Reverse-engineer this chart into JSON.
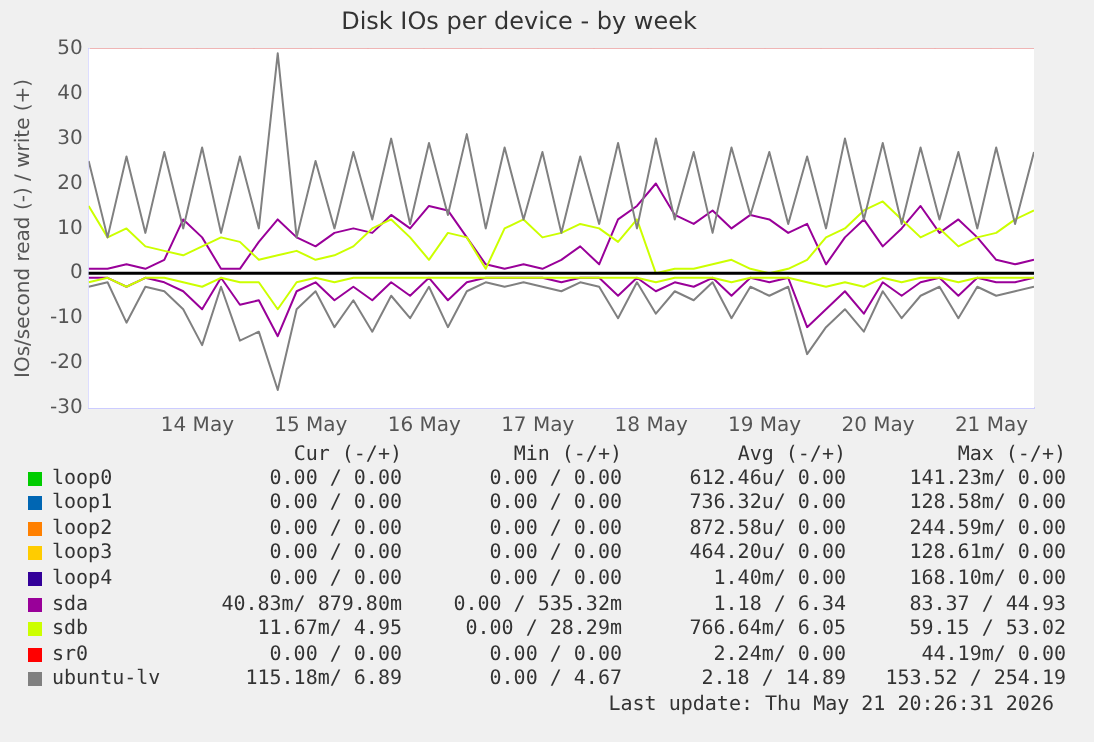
{
  "chart_data": {
    "type": "line",
    "title": "Disk IOs per device - by week",
    "ylabel": "IOs/second read (-) / write (+)",
    "x": [
      "2026-05-13T13:00",
      "2026-05-13T17:00",
      "2026-05-13T21:00",
      "2026-05-14T01:00",
      "2026-05-14T05:00",
      "2026-05-14T09:00",
      "2026-05-14T13:00",
      "2026-05-14T17:00",
      "2026-05-14T21:00",
      "2026-05-15T01:00",
      "2026-05-15T05:00",
      "2026-05-15T09:00",
      "2026-05-15T13:00",
      "2026-05-15T17:00",
      "2026-05-15T21:00",
      "2026-05-16T01:00",
      "2026-05-16T05:00",
      "2026-05-16T09:00",
      "2026-05-16T13:00",
      "2026-05-16T17:00",
      "2026-05-16T21:00",
      "2026-05-17T01:00",
      "2026-05-17T05:00",
      "2026-05-17T09:00",
      "2026-05-17T13:00",
      "2026-05-17T17:00",
      "2026-05-17T21:00",
      "2026-05-18T01:00",
      "2026-05-18T05:00",
      "2026-05-18T09:00",
      "2026-05-18T13:00",
      "2026-05-18T17:00",
      "2026-05-18T21:00",
      "2026-05-19T01:00",
      "2026-05-19T05:00",
      "2026-05-19T09:00",
      "2026-05-19T13:00",
      "2026-05-19T17:00",
      "2026-05-19T21:00",
      "2026-05-20T01:00",
      "2026-05-20T05:00",
      "2026-05-20T09:00",
      "2026-05-20T13:00",
      "2026-05-20T17:00",
      "2026-05-20T21:00",
      "2026-05-21T01:00",
      "2026-05-21T05:00",
      "2026-05-21T09:00",
      "2026-05-21T13:00",
      "2026-05-21T17:00",
      "2026-05-21T21:00"
    ],
    "series": [
      {
        "name": "loop0",
        "color": "#00cc00",
        "values": [
          null,
          null,
          null,
          null,
          null,
          null,
          null,
          null,
          null,
          null,
          null,
          null,
          null,
          null,
          null,
          null,
          null,
          null,
          null,
          null,
          null,
          null,
          null,
          null,
          null,
          null,
          null,
          null,
          null,
          null,
          null,
          null,
          null,
          null,
          null,
          null,
          null,
          null,
          null,
          null,
          null,
          null,
          null,
          null,
          null,
          null,
          null,
          null,
          null,
          null,
          null
        ]
      },
      {
        "name": "loop1",
        "color": "#0066b3",
        "values": [
          null,
          null,
          null,
          null,
          null,
          null,
          null,
          null,
          null,
          null,
          null,
          null,
          null,
          null,
          null,
          null,
          null,
          null,
          null,
          null,
          null,
          null,
          null,
          null,
          null,
          null,
          null,
          null,
          null,
          null,
          null,
          null,
          null,
          null,
          null,
          null,
          null,
          null,
          null,
          null,
          null,
          null,
          null,
          null,
          null,
          null,
          null,
          null,
          null,
          null,
          null
        ]
      },
      {
        "name": "loop2",
        "color": "#ff8000",
        "values": [
          null,
          null,
          null,
          null,
          null,
          null,
          null,
          null,
          null,
          null,
          null,
          null,
          null,
          null,
          null,
          null,
          null,
          null,
          null,
          null,
          null,
          null,
          null,
          null,
          null,
          null,
          null,
          null,
          null,
          null,
          null,
          null,
          null,
          null,
          null,
          null,
          null,
          null,
          null,
          null,
          null,
          null,
          null,
          null,
          null,
          null,
          null,
          null,
          null,
          null,
          null
        ]
      },
      {
        "name": "loop3",
        "color": "#ffcc00",
        "values": [
          null,
          null,
          null,
          null,
          null,
          null,
          null,
          null,
          null,
          null,
          null,
          null,
          null,
          null,
          null,
          null,
          null,
          null,
          null,
          null,
          null,
          null,
          null,
          null,
          null,
          null,
          null,
          null,
          null,
          null,
          null,
          null,
          null,
          null,
          null,
          null,
          null,
          null,
          null,
          null,
          null,
          null,
          null,
          null,
          null,
          null,
          null,
          null,
          null,
          null,
          null
        ]
      },
      {
        "name": "loop4",
        "color": "#330099",
        "values": [
          null,
          null,
          null,
          null,
          null,
          null,
          null,
          null,
          null,
          null,
          null,
          null,
          null,
          null,
          null,
          null,
          null,
          null,
          null,
          null,
          null,
          null,
          null,
          null,
          null,
          null,
          null,
          null,
          null,
          null,
          null,
          null,
          null,
          null,
          null,
          null,
          null,
          null,
          null,
          null,
          null,
          null,
          null,
          null,
          null,
          null,
          null,
          null,
          null,
          null,
          null
        ]
      },
      {
        "name": "sda",
        "color": "#990099",
        "values": [
          1,
          1,
          2,
          1,
          3,
          12,
          8,
          1,
          1,
          7,
          12,
          8,
          6,
          9,
          10,
          9,
          13,
          10,
          15,
          14,
          8,
          2,
          1,
          2,
          1,
          3,
          6,
          2,
          12,
          15,
          20,
          13,
          11,
          14,
          10,
          13,
          12,
          9,
          11,
          2,
          8,
          12,
          6,
          10,
          15,
          9,
          12,
          8,
          3,
          2,
          3
        ]
      },
      {
        "color": "#990099",
        "values": [
          -1,
          -1,
          -3,
          -1,
          -2,
          -4,
          -8,
          -1,
          -7,
          -6,
          -14,
          -4,
          -2,
          -6,
          -3,
          -6,
          -2,
          -5,
          -1,
          -6,
          -2,
          -1,
          -1,
          -1,
          -1,
          -2,
          -1,
          -1,
          -5,
          -1,
          -4,
          -2,
          -3,
          -1,
          -5,
          -1,
          -2,
          -1,
          -12,
          -8,
          -4,
          -9,
          -2,
          -5,
          -2,
          -1,
          -5,
          -1,
          -2,
          -2,
          -1
        ]
      },
      {
        "name": "sdb",
        "color": "#ccff00",
        "values": [
          15,
          8,
          10,
          6,
          5,
          4,
          6,
          8,
          7,
          3,
          4,
          5,
          3,
          4,
          6,
          10,
          12,
          8,
          3,
          9,
          8,
          1,
          10,
          12,
          8,
          9,
          11,
          10,
          7,
          12,
          0,
          1,
          1,
          2,
          3,
          1,
          0,
          1,
          3,
          8,
          10,
          14,
          16,
          12,
          8,
          10,
          6,
          8,
          9,
          12,
          14
        ]
      },
      {
        "color": "#ccff00",
        "values": [
          -2,
          -1,
          -3,
          -1,
          -1,
          -2,
          -3,
          -1,
          -2,
          -2,
          -8,
          -2,
          -1,
          -2,
          -1,
          -1,
          -1,
          -1,
          -1,
          -1,
          -1,
          -1,
          -1,
          -1,
          -1,
          -1,
          -1,
          -1,
          -1,
          -1,
          -2,
          -1,
          -1,
          -1,
          -2,
          -1,
          -1,
          -1,
          -2,
          -3,
          -2,
          -3,
          -1,
          -2,
          -1,
          -1,
          -2,
          -1,
          -1,
          -1,
          -1
        ]
      },
      {
        "name": "sr0",
        "color": "#ff0000",
        "values": [
          null,
          null,
          null,
          null,
          null,
          null,
          null,
          null,
          null,
          null,
          null,
          null,
          null,
          null,
          null,
          null,
          null,
          null,
          null,
          null,
          null,
          null,
          null,
          null,
          null,
          null,
          null,
          null,
          null,
          null,
          null,
          null,
          null,
          null,
          null,
          null,
          null,
          null,
          null,
          null,
          null,
          null,
          null,
          null,
          null,
          null,
          null,
          null,
          null,
          null,
          null
        ]
      },
      {
        "name": "ubuntu-lv",
        "color": "#808080",
        "values": [
          25,
          8,
          26,
          9,
          27,
          10,
          28,
          9,
          26,
          10,
          49,
          8,
          25,
          10,
          27,
          12,
          30,
          11,
          29,
          13,
          31,
          10,
          28,
          12,
          27,
          9,
          26,
          11,
          29,
          10,
          30,
          12,
          27,
          9,
          28,
          13,
          27,
          11,
          26,
          10,
          30,
          12,
          29,
          11,
          28,
          12,
          27,
          10,
          28,
          11,
          27
        ]
      },
      {
        "color": "#808080",
        "values": [
          -3,
          -2,
          -11,
          -3,
          -4,
          -8,
          -16,
          -3,
          -15,
          -13,
          -26,
          -8,
          -4,
          -12,
          -6,
          -13,
          -5,
          -10,
          -3,
          -12,
          -4,
          -2,
          -3,
          -2,
          -3,
          -4,
          -2,
          -3,
          -10,
          -2,
          -9,
          -4,
          -6,
          -2,
          -10,
          -3,
          -5,
          -3,
          -18,
          -12,
          -8,
          -13,
          -4,
          -10,
          -5,
          -3,
          -10,
          -3,
          -5,
          -4,
          -3
        ]
      }
    ],
    "xlim": [
      "2026-05-13T13:00",
      "2026-05-21T21:00"
    ],
    "xticks": [
      {
        "value": "2026-05-14T00:00",
        "label": null
      },
      {
        "value": "2026-05-14T12:00",
        "label": "14 May"
      },
      {
        "value": "2026-05-15T00:00",
        "label": null
      },
      {
        "value": "2026-05-15T12:00",
        "label": "15 May"
      },
      {
        "value": "2026-05-16T00:00",
        "label": null
      },
      {
        "value": "2026-05-16T12:00",
        "label": "16 May"
      },
      {
        "value": "2026-05-17T00:00",
        "label": null
      },
      {
        "value": "2026-05-17T12:00",
        "label": "17 May"
      },
      {
        "value": "2026-05-18T00:00",
        "label": null
      },
      {
        "value": "2026-05-18T12:00",
        "label": "18 May"
      },
      {
        "value": "2026-05-19T00:00",
        "label": null
      },
      {
        "value": "2026-05-19T12:00",
        "label": "19 May"
      },
      {
        "value": "2026-05-20T00:00",
        "label": null
      },
      {
        "value": "2026-05-20T12:00",
        "label": "20 May"
      },
      {
        "value": "2026-05-21T00:00",
        "label": null
      },
      {
        "value": "2026-05-21T12:00",
        "label": "21 May"
      }
    ],
    "ylim": [
      -30,
      50
    ],
    "yticks": [
      -30,
      -20,
      -10,
      0,
      10,
      20,
      30,
      40,
      50
    ],
    "ref_lines": [
      {
        "axis": "y",
        "value": 0,
        "color": "#000000"
      }
    ],
    "grid": true,
    "legend": "bottom",
    "marker": "none",
    "line_style": "solid",
    "annotations": [
      "Cur (-/+)",
      "Min (-/+)",
      "Avg (-/+)",
      "Max (-/+)",
      "0.00 / 0.00",
      "0.00 / 0.00",
      "612.46u/ 0.00",
      "141.23m/ 0.00",
      "0.00 / 0.00",
      "0.00 / 0.00",
      "736.32u/ 0.00",
      "128.58m/ 0.00",
      "0.00 / 0.00",
      "0.00 / 0.00",
      "872.58u/ 0.00",
      "244.59m/ 0.00",
      "0.00 / 0.00",
      "0.00 / 0.00",
      "464.20u/ 0.00",
      "128.61m/ 0.00",
      "0.00 / 0.00",
      "0.00 / 0.00",
      "1.40m/ 0.00",
      "168.10m/ 0.00",
      "40.83m/ 879.80m",
      "0.00 / 535.32m",
      "1.18 / 6.34",
      "83.37 / 44.93",
      "11.67m/ 4.95",
      "0.00 / 28.29m",
      "766.64m/ 6.05",
      "59.15 / 53.02",
      "0.00 / 0.00",
      "0.00 / 0.00",
      "2.24m/ 0.00",
      "44.19m/ 0.00",
      "115.18m/ 6.89",
      "0.00 / 4.67",
      "2.18 / 14.89",
      "153.52 / 254.19",
      "Last update: Thu May 21 20:26:31 2026"
    ]
  }
}
